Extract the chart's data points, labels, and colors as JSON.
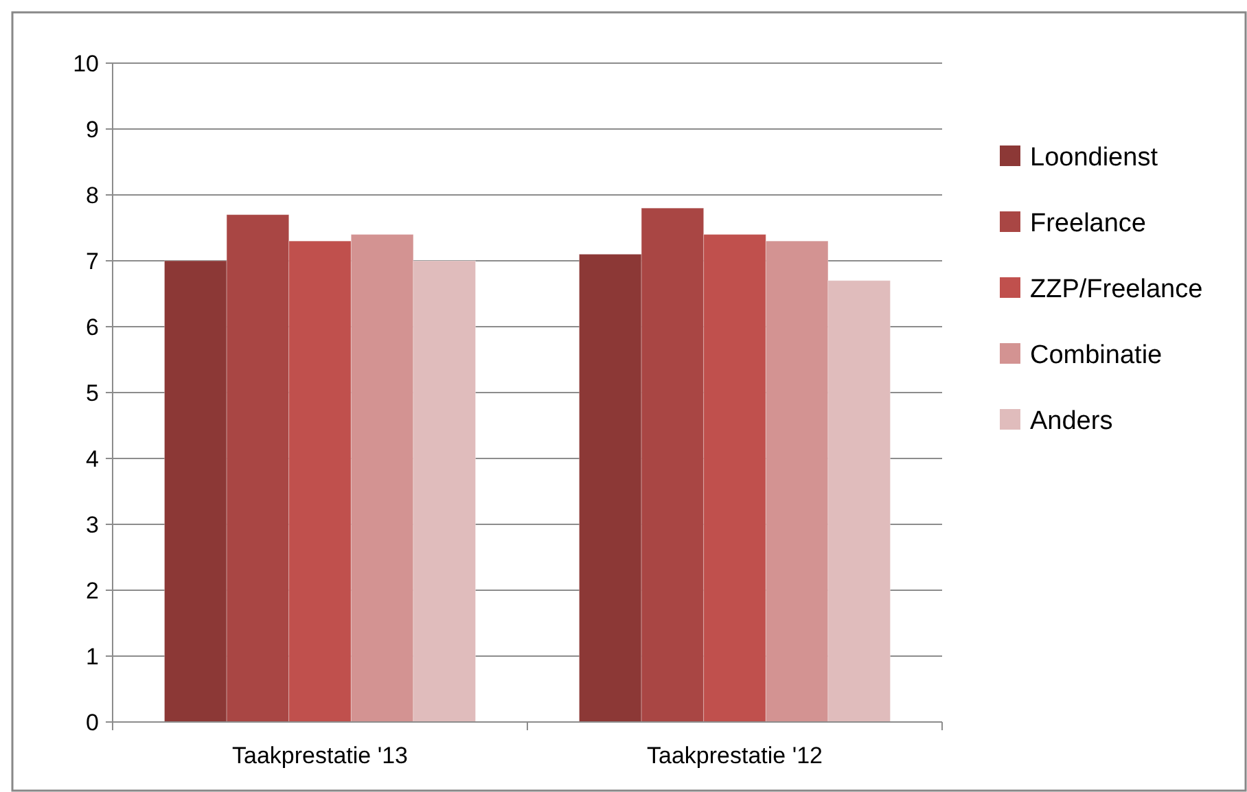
{
  "chart_data": {
    "type": "bar",
    "categories": [
      "Taakprestatie '13",
      "Taakprestatie '12"
    ],
    "series": [
      {
        "name": "Loondienst",
        "color": "#8c3836",
        "values": [
          7.0,
          7.1
        ]
      },
      {
        "name": "Freelance",
        "color": "#a94644",
        "values": [
          7.7,
          7.8
        ]
      },
      {
        "name": "ZZP/Freelance",
        "color": "#c0504d",
        "values": [
          7.3,
          7.4
        ]
      },
      {
        "name": "Combinatie",
        "color": "#d39392",
        "values": [
          7.4,
          7.3
        ]
      },
      {
        "name": "Anders",
        "color": "#e0bcbc",
        "values": [
          7.0,
          6.7
        ]
      }
    ],
    "ylim": [
      0,
      10
    ],
    "yticks": [
      0,
      1,
      2,
      3,
      4,
      5,
      6,
      7,
      8,
      9,
      10
    ],
    "grid": "y",
    "legend": "right"
  }
}
